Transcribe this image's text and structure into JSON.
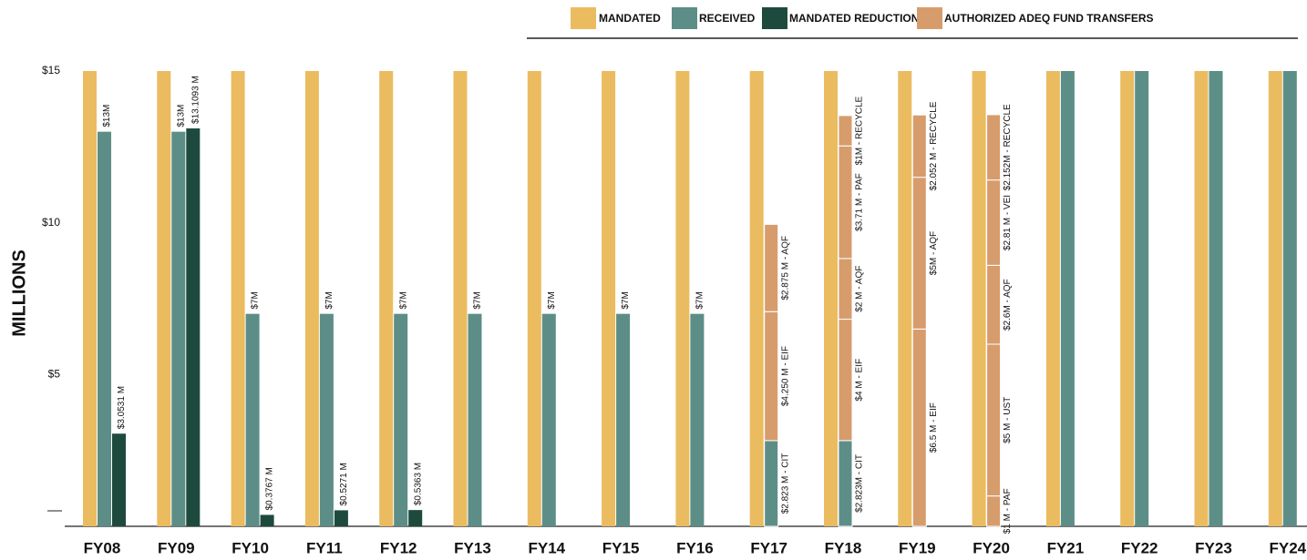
{
  "chart_data": {
    "type": "bar",
    "y_label": "MILLIONS",
    "categories": [
      "FY08",
      "FY09",
      "FY10",
      "FY11",
      "FY12",
      "FY13",
      "FY14",
      "FY15",
      "FY16",
      "FY17",
      "FY18",
      "FY19",
      "FY20",
      "FY21",
      "FY22",
      "FY23",
      "FY24"
    ],
    "ylim": [
      0,
      15
    ],
    "yticks": [
      {
        "value": 5,
        "label": "$5"
      },
      {
        "value": 10,
        "label": "$10"
      },
      {
        "value": 15,
        "label": "$15"
      }
    ],
    "series": [
      {
        "name": "MANDATED",
        "color": "#ebbb60",
        "values": [
          15,
          15,
          15,
          15,
          15,
          15,
          15,
          15,
          15,
          15,
          15,
          15,
          15,
          15,
          15,
          15,
          15
        ]
      },
      {
        "name": "RECEIVED",
        "color": "#5c8e87",
        "values": [
          13,
          13,
          7,
          7,
          7,
          7,
          7,
          7,
          7,
          null,
          null,
          null,
          null,
          15,
          15,
          15,
          15
        ],
        "value_labels": [
          "$13M",
          "$13M",
          "$7M",
          "$7M",
          "$7M",
          "$7M",
          "$7M",
          "$7M",
          "$7M",
          null,
          null,
          null,
          null,
          null,
          null,
          null,
          null
        ]
      },
      {
        "name": "MANDATED REDUCTIONS",
        "color": "#1e4a3e",
        "values": [
          3.0531,
          13.1093,
          0.3767,
          0.5271,
          0.5363,
          null,
          null,
          null,
          null,
          null,
          null,
          null,
          null,
          null,
          null,
          null,
          null
        ],
        "value_labels": [
          "$3.0531 M",
          "$13.1093 M",
          "$0.3767 M",
          "$0.5271 M",
          "$0.5363 M",
          null,
          null,
          null,
          null,
          null,
          null,
          null,
          null,
          null,
          null,
          null,
          null
        ]
      },
      {
        "name": "AUTHORIZED ADEQ FUND TRANSFERS",
        "color": "#d79c6c",
        "segments": [
          null,
          null,
          null,
          null,
          null,
          null,
          null,
          null,
          null,
          [
            {
              "value": 2.823,
              "label": "$2.823 M - CIT",
              "color": "#5c8e87"
            },
            {
              "value": 4.25,
              "label": "$4.250 M - EIF",
              "color": "#d79c6c"
            },
            {
              "value": 2.875,
              "label": "$2.875 M - AQF",
              "color": "#d79c6c"
            }
          ],
          [
            {
              "value": 2.823,
              "label": "$2.823M - CIT",
              "color": "#5c8e87"
            },
            {
              "value": 4,
              "label": "$4 M - EIF",
              "color": "#d79c6c"
            },
            {
              "value": 2,
              "label": "$2 M - AQF",
              "color": "#d79c6c"
            },
            {
              "value": 3.71,
              "label": "$3.71 M - PAF",
              "color": "#d79c6c"
            },
            {
              "value": 1,
              "label": "$1M - RECYCLE",
              "color": "#d79c6c"
            }
          ],
          [
            {
              "value": 6.5,
              "label": "$6.5 M - EIF",
              "color": "#d79c6c"
            },
            {
              "value": 5,
              "label": "$5M - AQF",
              "color": "#d79c6c"
            },
            {
              "value": 2.052,
              "label": "$2.052 M - RECYCLE",
              "color": "#d79c6c"
            }
          ],
          [
            {
              "value": 1,
              "label": "$1 M - PAF",
              "color": "#d79c6c"
            },
            {
              "value": 5,
              "label": "$5 M - UST",
              "color": "#d79c6c"
            },
            {
              "value": 2.6,
              "label": "$2.6M - AQF",
              "color": "#d79c6c"
            },
            {
              "value": 2.81,
              "label": "$2.81 M - VEI",
              "color": "#d79c6c"
            },
            {
              "value": 2.152,
              "label": "$2.152M - RECYCLE",
              "color": "#d79c6c"
            }
          ],
          null,
          null,
          null,
          null
        ]
      }
    ]
  }
}
